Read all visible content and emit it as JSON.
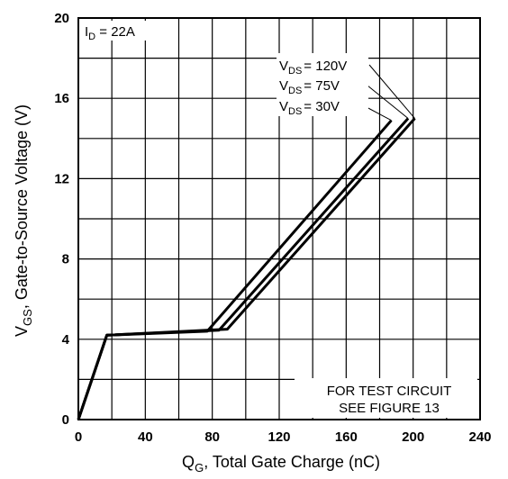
{
  "chart_data": {
    "type": "line",
    "xlabel_main": "Q",
    "xlabel_sub": "G",
    "xlabel_rest": ", Total Gate Charge (nC)",
    "ylabel_main": "V",
    "ylabel_sub": "GS",
    "ylabel_rest": ", Gate-to-Source Voltage (V)",
    "xlim": [
      0,
      240
    ],
    "ylim": [
      0,
      20
    ],
    "xticks": [
      0,
      40,
      80,
      120,
      160,
      200,
      240
    ],
    "yticks": [
      0,
      4,
      8,
      12,
      16,
      20
    ],
    "grid": true,
    "series": [
      {
        "name": "120V",
        "x": [
          0,
          17,
          89,
          201
        ],
        "y": [
          0,
          4.2,
          4.5,
          15.0
        ]
      },
      {
        "name": "75V",
        "x": [
          0,
          17,
          84,
          197
        ],
        "y": [
          0,
          4.2,
          4.45,
          15.0
        ]
      },
      {
        "name": "30V",
        "x": [
          0,
          17,
          77,
          187
        ],
        "y": [
          0,
          4.2,
          4.4,
          14.9
        ]
      }
    ],
    "legend_prefix": "V",
    "legend_sub": "DS",
    "legend_entries": [
      "= 120V",
      "= 75V",
      "= 30V"
    ],
    "condition_main": "I",
    "condition_sub": "D",
    "condition_rest": " = 22A",
    "note_line1": "FOR TEST CIRCUIT",
    "note_line2": "SEE FIGURE 13"
  }
}
